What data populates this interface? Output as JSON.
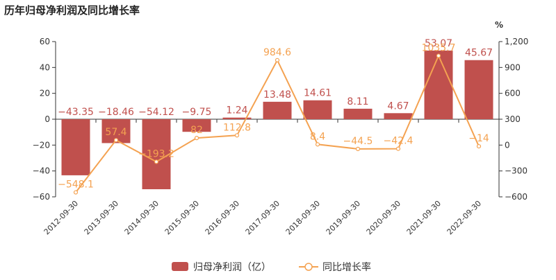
{
  "chart_data": {
    "type": "bar+line",
    "title": "历年归母净利润及同比增长率",
    "categories": [
      "2012-09-30",
      "2013-09-30",
      "2014-09-30",
      "2015-09-30",
      "2016-09-30",
      "2017-09-30",
      "2018-09-30",
      "2019-09-30",
      "2020-09-30",
      "2021-09-30",
      "2022-09-30"
    ],
    "series": [
      {
        "name": "归母净利润（亿）",
        "type": "bar",
        "axis": "left",
        "values": [
          -43.35,
          -18.46,
          -54.12,
          -9.75,
          1.24,
          13.48,
          14.61,
          8.11,
          4.67,
          53.07,
          45.67
        ],
        "labels": [
          "−43.35",
          "−18.46",
          "−54.12",
          "−9.75",
          "1.24",
          "13.48",
          "14.61",
          "8.11",
          "4.67",
          "53.07",
          "45.67"
        ]
      },
      {
        "name": "同比增长率",
        "type": "line",
        "axis": "right",
        "values": [
          -548.1,
          57.4,
          -193.2,
          82,
          112.8,
          984.6,
          8.4,
          -44.5,
          -42.4,
          1035.7,
          -14
        ],
        "labels": [
          "−548.1",
          "57.4",
          "−193.2",
          "82",
          "112.8",
          "984.6",
          "8.4",
          "−44.5",
          "−42.4",
          "1035.7",
          "−14"
        ]
      }
    ],
    "left_axis": {
      "min": -60,
      "max": 60,
      "ticks": [
        "60",
        "40",
        "20",
        "0",
        "−20",
        "−40",
        "−60"
      ]
    },
    "right_axis": {
      "min": -600,
      "max": 1200,
      "unit": "%",
      "ticks": [
        "1,200",
        "900",
        "600",
        "300",
        "0",
        "−300",
        "−600"
      ]
    },
    "grid": false,
    "legend_position": "bottom",
    "colors": {
      "bar": "#c0504d",
      "line": "#f4a251",
      "axis": "#333333",
      "text": "#333333",
      "bar_label": "#c0504d",
      "line_label": "#f4a251"
    }
  }
}
